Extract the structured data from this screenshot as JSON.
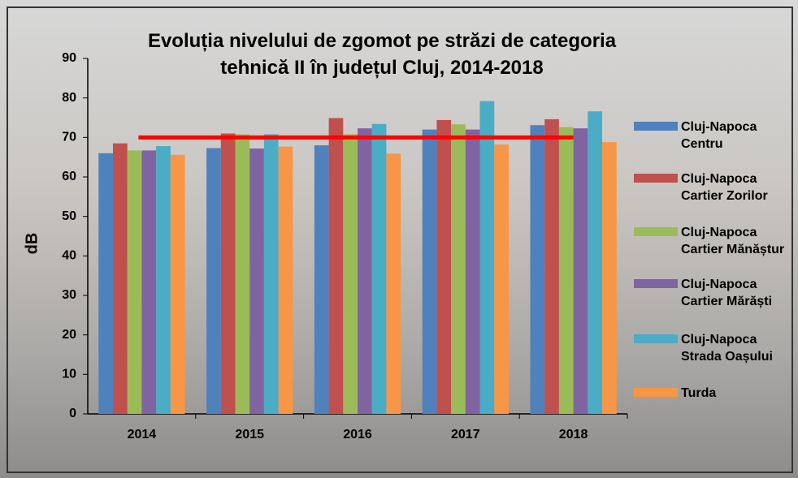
{
  "chart_data": {
    "type": "bar",
    "title": "Evoluția nivelului de zgomot pe străzi de categoria tehnică II în județul Cluj, 2014-2018",
    "y_label": "dB",
    "categories": [
      "2014",
      "2015",
      "2016",
      "2017",
      "2018"
    ],
    "series": [
      {
        "name": "Cluj-Napoca Centru",
        "color": "#4f81bd",
        "values": [
          66,
          67.3,
          68,
          72,
          73.1
        ]
      },
      {
        "name": "Cluj-Napoca Cartier Zorilor",
        "color": "#c0504d",
        "values": [
          68.5,
          71,
          74.9,
          74.4,
          74.6
        ]
      },
      {
        "name": "Cluj-Napoca Cartier Mănăștur",
        "color": "#9bbb59",
        "values": [
          66.7,
          70.8,
          70.8,
          73.3,
          72.6
        ]
      },
      {
        "name": "Cluj-Napoca Cartier Mărăști",
        "color": "#8064a2",
        "values": [
          66.7,
          67.2,
          72.3,
          72,
          72.3
        ]
      },
      {
        "name": "Cluj-Napoca Strada Oașului",
        "color": "#4bacc6",
        "values": [
          67.8,
          70.8,
          73.4,
          79.2,
          76.6
        ]
      },
      {
        "name": "Turda",
        "color": "#f79646",
        "values": [
          65.6,
          67.7,
          65.9,
          68.2,
          68.8
        ]
      }
    ],
    "threshold": 70,
    "threshold_color": "#ff0000",
    "ylim": [
      0,
      90
    ],
    "yticks": [
      0,
      10,
      20,
      30,
      40,
      50,
      60,
      70,
      80,
      90
    ],
    "legend": "right"
  }
}
